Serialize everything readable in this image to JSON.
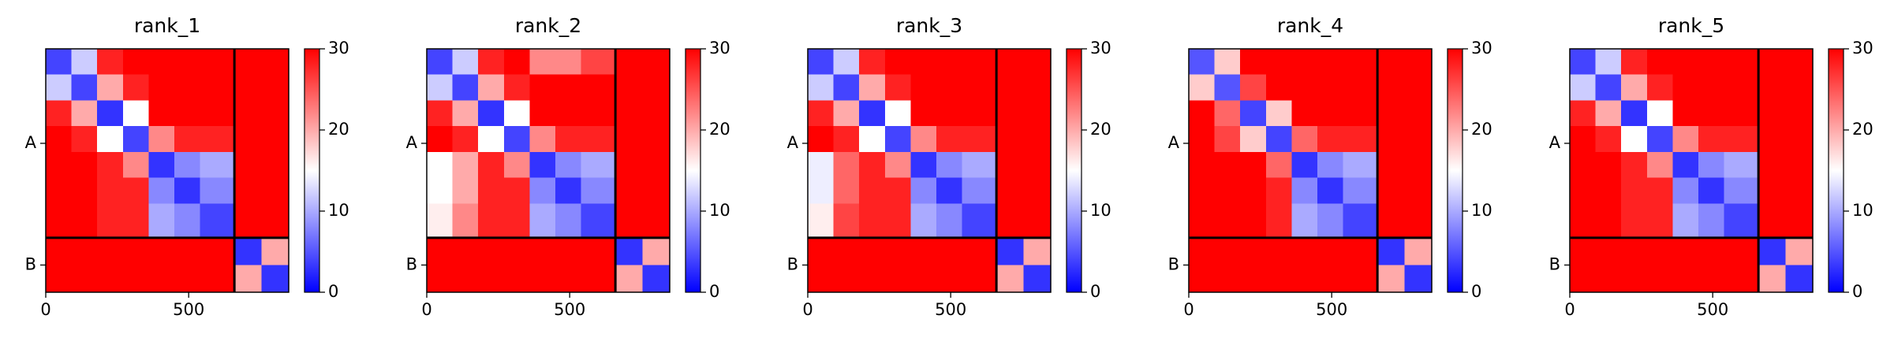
{
  "chart_data": [
    {
      "type": "heatmap",
      "title": "rank_1",
      "colormap": [
        "#0000ff",
        "#ffffff",
        "#ff0000"
      ],
      "bins": [
        0,
        90,
        180,
        270,
        360,
        450,
        540,
        660,
        755,
        850
      ],
      "values": [
        [
          4,
          12,
          28,
          30,
          30,
          30,
          30,
          30,
          30
        ],
        [
          12,
          4,
          20,
          28,
          30,
          30,
          30,
          30,
          30
        ],
        [
          28,
          20,
          3,
          15,
          30,
          30,
          30,
          30,
          30
        ],
        [
          30,
          28,
          15,
          4,
          22,
          28,
          28,
          30,
          30
        ],
        [
          30,
          30,
          28,
          22,
          3,
          8,
          10,
          30,
          30
        ],
        [
          30,
          30,
          28,
          28,
          8,
          3,
          8,
          30,
          30
        ],
        [
          30,
          30,
          28,
          28,
          10,
          8,
          4,
          30,
          30
        ],
        [
          30,
          30,
          30,
          30,
          30,
          30,
          30,
          3,
          20
        ],
        [
          30,
          30,
          30,
          30,
          30,
          30,
          30,
          20,
          3
        ]
      ],
      "xlim": [
        0,
        850
      ],
      "xticks": [
        0,
        500
      ],
      "ylim": [
        850,
        0
      ],
      "yticks": [
        {
          "value": 330,
          "label": "A"
        },
        {
          "value": 755,
          "label": "B"
        }
      ],
      "chain_boundaries": [
        660
      ],
      "zlim": [
        0,
        30
      ],
      "zticks": [
        0,
        10,
        20,
        30
      ]
    },
    {
      "type": "heatmap",
      "title": "rank_2",
      "colormap": [
        "#0000ff",
        "#ffffff",
        "#ff0000"
      ],
      "bins": [
        0,
        90,
        180,
        270,
        360,
        450,
        540,
        660,
        755,
        850
      ],
      "values": [
        [
          4,
          12,
          28,
          30,
          22,
          22,
          26,
          30,
          30
        ],
        [
          12,
          4,
          20,
          28,
          30,
          30,
          30,
          30,
          30
        ],
        [
          28,
          20,
          3,
          15,
          30,
          30,
          30,
          30,
          30
        ],
        [
          30,
          28,
          15,
          4,
          22,
          28,
          28,
          30,
          30
        ],
        [
          15,
          20,
          28,
          22,
          3,
          8,
          10,
          30,
          30
        ],
        [
          15,
          20,
          28,
          28,
          8,
          3,
          8,
          30,
          30
        ],
        [
          16,
          22,
          28,
          28,
          10,
          8,
          4,
          30,
          30
        ],
        [
          30,
          30,
          30,
          30,
          30,
          30,
          30,
          3,
          20
        ],
        [
          30,
          30,
          30,
          30,
          30,
          30,
          30,
          20,
          3
        ]
      ],
      "xlim": [
        0,
        850
      ],
      "xticks": [
        0,
        500
      ],
      "ylim": [
        850,
        0
      ],
      "yticks": [
        {
          "value": 330,
          "label": "A"
        },
        {
          "value": 755,
          "label": "B"
        }
      ],
      "chain_boundaries": [
        660
      ],
      "zlim": [
        0,
        30
      ],
      "zticks": [
        0,
        10,
        20,
        30
      ]
    },
    {
      "type": "heatmap",
      "title": "rank_3",
      "colormap": [
        "#0000ff",
        "#ffffff",
        "#ff0000"
      ],
      "bins": [
        0,
        90,
        180,
        270,
        360,
        450,
        540,
        660,
        755,
        850
      ],
      "values": [
        [
          4,
          12,
          28,
          30,
          30,
          30,
          30,
          30,
          30
        ],
        [
          12,
          4,
          20,
          28,
          30,
          30,
          30,
          30,
          30
        ],
        [
          28,
          20,
          3,
          15,
          30,
          30,
          30,
          30,
          30
        ],
        [
          30,
          28,
          15,
          4,
          22,
          28,
          28,
          30,
          30
        ],
        [
          14,
          24,
          28,
          22,
          3,
          8,
          10,
          30,
          30
        ],
        [
          14,
          24,
          28,
          28,
          8,
          3,
          8,
          30,
          30
        ],
        [
          16,
          26,
          28,
          28,
          10,
          8,
          4,
          30,
          30
        ],
        [
          30,
          30,
          30,
          30,
          30,
          30,
          30,
          3,
          20
        ],
        [
          30,
          30,
          30,
          30,
          30,
          30,
          30,
          20,
          3
        ]
      ],
      "xlim": [
        0,
        850
      ],
      "xticks": [
        0,
        500
      ],
      "ylim": [
        850,
        0
      ],
      "yticks": [
        {
          "value": 330,
          "label": "A"
        },
        {
          "value": 755,
          "label": "B"
        }
      ],
      "chain_boundaries": [
        660
      ],
      "zlim": [
        0,
        30
      ],
      "zticks": [
        0,
        10,
        20,
        30
      ]
    },
    {
      "type": "heatmap",
      "title": "rank_4",
      "colormap": [
        "#0000ff",
        "#ffffff",
        "#ff0000"
      ],
      "bins": [
        0,
        90,
        180,
        270,
        360,
        450,
        540,
        660,
        755,
        850
      ],
      "values": [
        [
          5,
          18,
          30,
          30,
          30,
          30,
          30,
          30,
          30
        ],
        [
          18,
          5,
          26,
          30,
          30,
          30,
          30,
          30,
          30
        ],
        [
          30,
          24,
          4,
          18,
          30,
          30,
          30,
          30,
          30
        ],
        [
          30,
          26,
          18,
          4,
          24,
          28,
          28,
          30,
          30
        ],
        [
          30,
          30,
          30,
          24,
          3,
          8,
          10,
          30,
          30
        ],
        [
          30,
          30,
          30,
          28,
          8,
          3,
          8,
          30,
          30
        ],
        [
          30,
          30,
          30,
          28,
          10,
          8,
          4,
          30,
          30
        ],
        [
          30,
          30,
          30,
          30,
          30,
          30,
          30,
          3,
          20
        ],
        [
          30,
          30,
          30,
          30,
          30,
          30,
          30,
          20,
          3
        ]
      ],
      "xlim": [
        0,
        850
      ],
      "xticks": [
        0,
        500
      ],
      "ylim": [
        850,
        0
      ],
      "yticks": [
        {
          "value": 330,
          "label": "A"
        },
        {
          "value": 755,
          "label": "B"
        }
      ],
      "chain_boundaries": [
        660
      ],
      "zlim": [
        0,
        30
      ],
      "zticks": [
        0,
        10,
        20,
        30
      ]
    },
    {
      "type": "heatmap",
      "title": "rank_5",
      "colormap": [
        "#0000ff",
        "#ffffff",
        "#ff0000"
      ],
      "bins": [
        0,
        90,
        180,
        270,
        360,
        450,
        540,
        660,
        755,
        850
      ],
      "values": [
        [
          4,
          12,
          28,
          30,
          30,
          30,
          30,
          30,
          30
        ],
        [
          12,
          4,
          20,
          28,
          30,
          30,
          30,
          30,
          30
        ],
        [
          28,
          20,
          3,
          15,
          30,
          30,
          30,
          30,
          30
        ],
        [
          30,
          28,
          15,
          4,
          22,
          28,
          28,
          30,
          30
        ],
        [
          30,
          30,
          28,
          22,
          3,
          8,
          10,
          30,
          30
        ],
        [
          30,
          30,
          28,
          28,
          8,
          3,
          8,
          30,
          30
        ],
        [
          30,
          30,
          28,
          28,
          10,
          8,
          4,
          30,
          30
        ],
        [
          30,
          30,
          30,
          30,
          30,
          30,
          30,
          3,
          20
        ],
        [
          30,
          30,
          30,
          30,
          30,
          30,
          30,
          20,
          3
        ]
      ],
      "xlim": [
        0,
        850
      ],
      "xticks": [
        0,
        500
      ],
      "ylim": [
        850,
        0
      ],
      "yticks": [
        {
          "value": 330,
          "label": "A"
        },
        {
          "value": 755,
          "label": "B"
        }
      ],
      "chain_boundaries": [
        660
      ],
      "zlim": [
        0,
        30
      ],
      "zticks": [
        0,
        10,
        20,
        30
      ]
    }
  ]
}
